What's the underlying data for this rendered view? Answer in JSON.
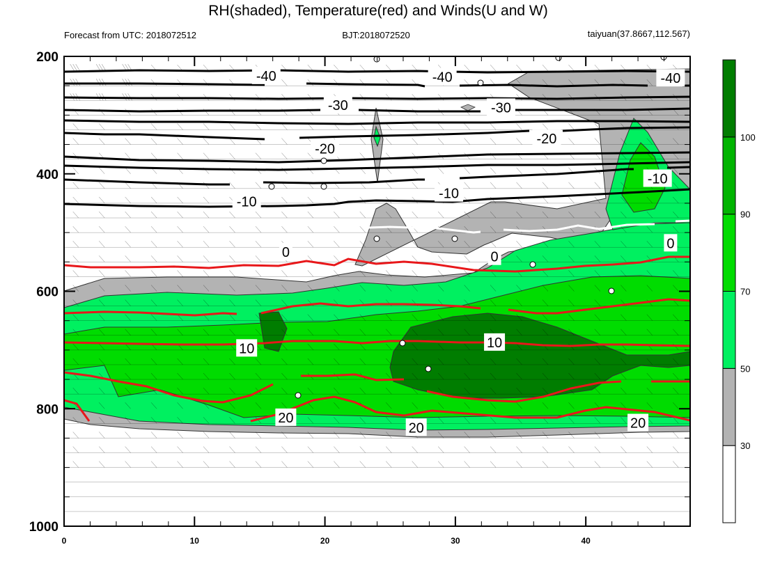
{
  "title": "RH(shaded), Temperature(red) and Winds(U and W)",
  "subtitle_left": "Forecast from UTC: 2018072512",
  "subtitle_center": "BJT:2018072520",
  "subtitle_right": "taiyuan(37.8667,112.567)",
  "chart_data": {
    "type": "contour",
    "x_ticks": [
      "0",
      "10",
      "20",
      "30",
      "40"
    ],
    "xlim": [
      0,
      48
    ],
    "y_ticks": [
      "200",
      "400",
      "600",
      "800",
      "1000"
    ],
    "ylim": [
      200,
      1000
    ],
    "rh_colorbar": {
      "levels": [
        "30",
        "50",
        "70",
        "90",
        "100"
      ],
      "colors": [
        "#ffffff",
        "#b3b3b3",
        "#00f060",
        "#00dc00",
        "#00b400",
        "#007d00"
      ]
    },
    "temperature_contours": {
      "black_levels": [
        -40,
        -30,
        -20,
        -10
      ],
      "white_level": 0,
      "red_levels": [
        10,
        20
      ],
      "labels": [
        {
          "text": "-40",
          "x": 15.5,
          "p": 233
        },
        {
          "text": "-40",
          "x": 29,
          "p": 235
        },
        {
          "text": "-40",
          "x": 46.5,
          "p": 237
        },
        {
          "text": "-30",
          "x": 21,
          "p": 283
        },
        {
          "text": "-30",
          "x": 33.5,
          "p": 287
        },
        {
          "text": "-20",
          "x": 37,
          "p": 340
        },
        {
          "text": "-20",
          "x": 20,
          "p": 357
        },
        {
          "text": "-10",
          "x": 14,
          "p": 447
        },
        {
          "text": "-10",
          "x": 29.5,
          "p": 433
        },
        {
          "text": "-10",
          "x": 45.5,
          "p": 408
        },
        {
          "text": "0",
          "x": 17,
          "p": 533
        },
        {
          "text": "0",
          "x": 33,
          "p": 541
        },
        {
          "text": "0",
          "x": 46.5,
          "p": 518
        },
        {
          "text": "10",
          "x": 14,
          "p": 697
        },
        {
          "text": "10",
          "x": 33,
          "p": 687
        },
        {
          "text": "20",
          "x": 17,
          "p": 815
        },
        {
          "text": "20",
          "x": 27,
          "p": 832
        },
        {
          "text": "20",
          "x": 44,
          "p": 824
        }
      ]
    }
  }
}
